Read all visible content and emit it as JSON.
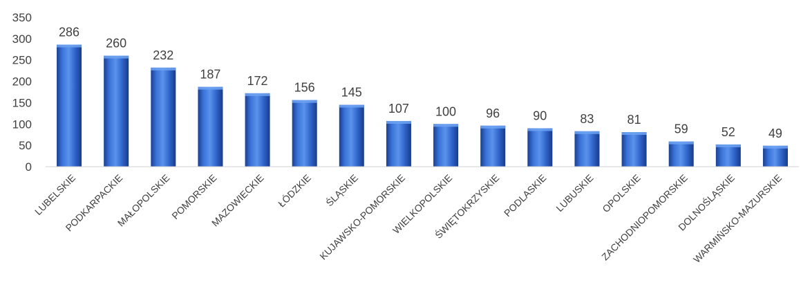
{
  "chart_data": {
    "type": "bar",
    "title": "",
    "xlabel": "",
    "ylabel": "",
    "ylim": [
      0,
      350
    ],
    "yticks": [
      0,
      50,
      100,
      150,
      200,
      250,
      300,
      350
    ],
    "grid": false,
    "legend": "none",
    "categories": [
      "LUBELSKIE",
      "PODKARPACKIE",
      "MAŁOPOLSKIE",
      "POMORSKIE",
      "MAZOWIECKIE",
      "ŁÓDZKIE",
      "ŚLĄSKIE",
      "KUJAWSKO-POMORSKIE",
      "WIELKOPOLSKIE",
      "ŚWIĘTOKRZYSKIE",
      "PODLASKIE",
      "LUBUSKIE",
      "OPOLSKIE",
      "ZACHODNIOPOMORSKIE",
      "DOLNOŚLĄSKIE",
      "WARMIŃSKO-MAZURSKIE"
    ],
    "values": [
      286,
      260,
      232,
      187,
      172,
      156,
      145,
      107,
      100,
      96,
      90,
      83,
      81,
      59,
      52,
      49
    ],
    "colors": {
      "bar_light": "#4f86e6",
      "bar_mid": "#2a5dc4",
      "bar_dark": "#1a3f8f",
      "axis": "#d0d0d0",
      "text": "#404040"
    }
  }
}
